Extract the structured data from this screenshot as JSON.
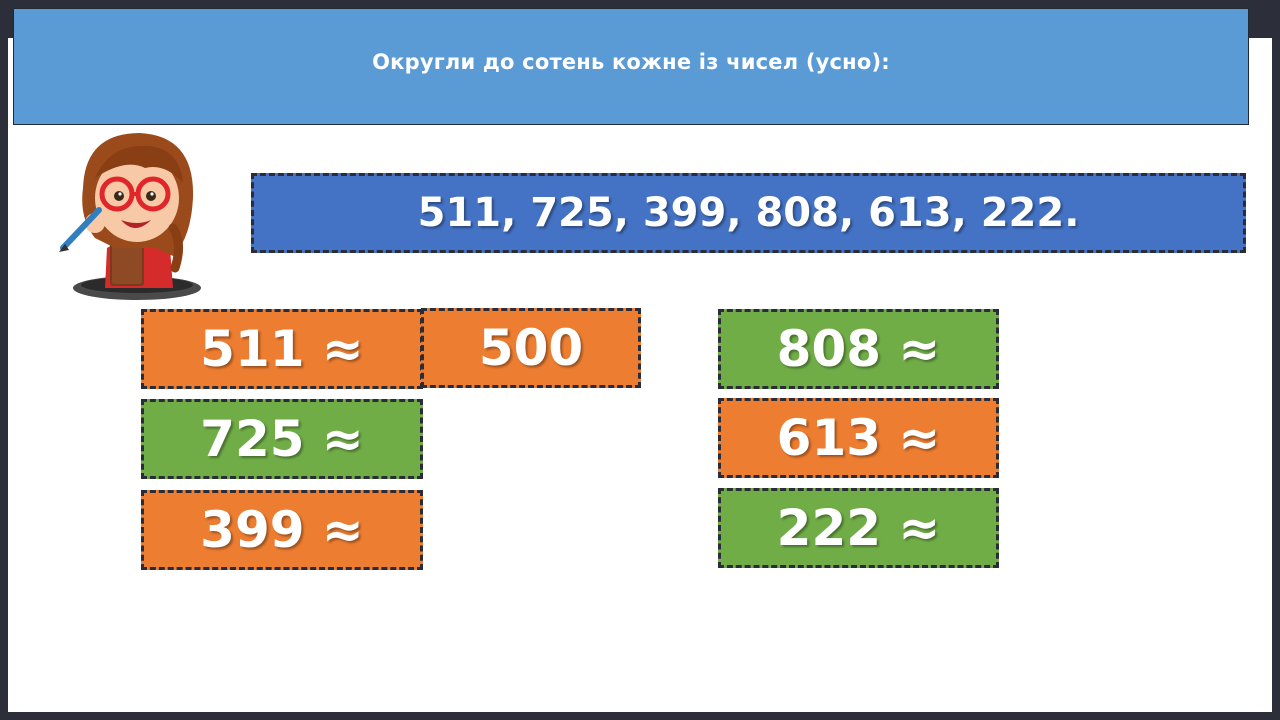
{
  "header": {
    "title": "Округли до сотень кожне із чисел (усно):"
  },
  "banner": {
    "numbers": "511, 725, 399, 808, 613, 222."
  },
  "tiles": {
    "left": [
      {
        "label": "511 ≈",
        "color": "#ed7d31"
      },
      {
        "label": "725 ≈",
        "color": "#70ad47"
      },
      {
        "label": "399 ≈",
        "color": "#ed7d31"
      }
    ],
    "right": [
      {
        "label": "808 ≈",
        "color": "#70ad47"
      },
      {
        "label": "613 ≈",
        "color": "#ed7d31"
      },
      {
        "label": "222 ≈",
        "color": "#70ad47"
      }
    ],
    "answer": {
      "label": "500",
      "color": "#ed7d31"
    }
  },
  "colors": {
    "header_bg": "#5b9bd5",
    "banner_bg": "#4472c4",
    "orange": "#ed7d31",
    "green": "#70ad47"
  }
}
